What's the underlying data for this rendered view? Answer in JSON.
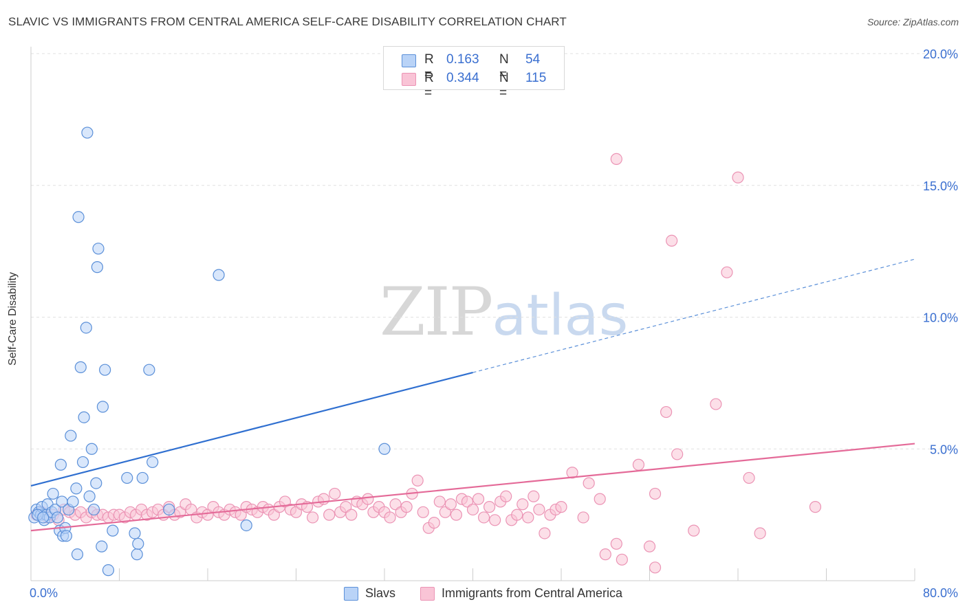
{
  "title": "SLAVIC VS IMMIGRANTS FROM CENTRAL AMERICA SELF-CARE DISABILITY CORRELATION CHART",
  "source": "Source: ZipAtlas.com",
  "watermark": {
    "zip": "ZIP",
    "atlas": "atlas"
  },
  "colors": {
    "blue": "#2f6fd0",
    "blue_fill": "#b9d3f7",
    "blue_stroke": "#5a8fd8",
    "pink": "#e46a98",
    "pink_fill": "#f9c4d6",
    "pink_stroke": "#eb93b4",
    "grid": "#e0e0e0",
    "axis_text": "#3a6fd0"
  },
  "legend_top": {
    "rows": [
      {
        "r_label": "R =",
        "r_value": "0.163",
        "n_label": "N =",
        "n_value": "54",
        "color": "#b9d3f7"
      },
      {
        "r_label": "R =",
        "r_value": "0.344",
        "n_label": "N =",
        "n_value": "115",
        "color": "#f9c4d6"
      }
    ]
  },
  "legend_bottom": {
    "items": [
      {
        "label": "Slavs",
        "color": "#b9d3f7"
      },
      {
        "label": "Immigrants from Central America",
        "color": "#f9c4d6"
      }
    ]
  },
  "chart_data": {
    "type": "scatter",
    "title": "SLAVIC VS IMMIGRANTS FROM CENTRAL AMERICA SELF-CARE DISABILITY CORRELATION CHART",
    "xlabel": "",
    "ylabel": "Self-Care Disability",
    "xlim": [
      0,
      80
    ],
    "ylim": [
      0,
      20
    ],
    "x_tick_labels": [
      "0.0%",
      "80.0%"
    ],
    "y_tick_labels": [
      "5.0%",
      "10.0%",
      "15.0%",
      "20.0%"
    ],
    "y_ticks": [
      5,
      10,
      15,
      20
    ],
    "x_ticks": [
      0,
      8,
      16,
      24,
      32,
      40,
      48,
      56,
      64,
      72,
      80
    ],
    "series": [
      {
        "name": "Slavs",
        "r": 0.163,
        "n": 54,
        "trend": {
          "x0": 0,
          "y0": 3.6,
          "x1": 40,
          "y1": 7.9,
          "dash_to_x": 80,
          "dash_to_y": 12.2
        },
        "points": [
          [
            0.3,
            2.4
          ],
          [
            0.5,
            2.7
          ],
          [
            0.7,
            2.6
          ],
          [
            0.9,
            2.5
          ],
          [
            1.0,
            2.8
          ],
          [
            1.2,
            2.3
          ],
          [
            1.4,
            2.5
          ],
          [
            1.5,
            2.9
          ],
          [
            1.7,
            2.4
          ],
          [
            1.9,
            2.6
          ],
          [
            2.0,
            3.3
          ],
          [
            2.2,
            2.7
          ],
          [
            2.4,
            2.4
          ],
          [
            2.6,
            1.9
          ],
          [
            2.7,
            4.4
          ],
          [
            2.8,
            3.0
          ],
          [
            2.9,
            1.7
          ],
          [
            3.1,
            2.0
          ],
          [
            3.2,
            1.7
          ],
          [
            3.4,
            2.7
          ],
          [
            3.6,
            5.5
          ],
          [
            3.8,
            3.0
          ],
          [
            4.1,
            3.5
          ],
          [
            4.2,
            1.0
          ],
          [
            4.3,
            13.8
          ],
          [
            4.5,
            8.1
          ],
          [
            4.7,
            4.5
          ],
          [
            4.8,
            6.2
          ],
          [
            5.0,
            9.6
          ],
          [
            5.1,
            17.0
          ],
          [
            5.3,
            3.2
          ],
          [
            5.5,
            5.0
          ],
          [
            5.7,
            2.7
          ],
          [
            5.9,
            3.7
          ],
          [
            6.0,
            11.9
          ],
          [
            6.1,
            12.6
          ],
          [
            6.4,
            1.3
          ],
          [
            6.5,
            6.6
          ],
          [
            6.7,
            8.0
          ],
          [
            7.0,
            0.4
          ],
          [
            7.4,
            1.9
          ],
          [
            8.7,
            3.9
          ],
          [
            9.4,
            1.8
          ],
          [
            9.6,
            1.0
          ],
          [
            9.7,
            1.4
          ],
          [
            10.1,
            3.9
          ],
          [
            10.7,
            8.0
          ],
          [
            11.0,
            4.5
          ],
          [
            12.5,
            2.7
          ],
          [
            17.0,
            11.6
          ],
          [
            19.5,
            2.1
          ],
          [
            32.0,
            5.0
          ],
          [
            0.6,
            2.5
          ],
          [
            1.1,
            2.4
          ]
        ]
      },
      {
        "name": "Immigrants from Central America",
        "r": 0.344,
        "n": 115,
        "trend": {
          "x0": 0,
          "y0": 1.9,
          "x1": 80,
          "y1": 5.2
        },
        "points": [
          [
            0.5,
            2.5
          ],
          [
            1.0,
            2.6
          ],
          [
            1.5,
            2.4
          ],
          [
            2.0,
            2.5
          ],
          [
            2.5,
            2.3
          ],
          [
            3.0,
            2.7
          ],
          [
            3.5,
            2.6
          ],
          [
            4.0,
            2.5
          ],
          [
            4.5,
            2.6
          ],
          [
            5.0,
            2.4
          ],
          [
            5.5,
            2.6
          ],
          [
            6.0,
            2.5
          ],
          [
            6.5,
            2.5
          ],
          [
            7.0,
            2.4
          ],
          [
            7.5,
            2.5
          ],
          [
            8.0,
            2.5
          ],
          [
            8.5,
            2.4
          ],
          [
            9.0,
            2.6
          ],
          [
            9.5,
            2.5
          ],
          [
            10.0,
            2.7
          ],
          [
            10.5,
            2.5
          ],
          [
            11.0,
            2.6
          ],
          [
            11.5,
            2.7
          ],
          [
            12.0,
            2.5
          ],
          [
            12.5,
            2.8
          ],
          [
            13.0,
            2.5
          ],
          [
            13.5,
            2.6
          ],
          [
            14.0,
            2.9
          ],
          [
            14.5,
            2.7
          ],
          [
            15.0,
            2.4
          ],
          [
            15.5,
            2.6
          ],
          [
            16.0,
            2.5
          ],
          [
            16.5,
            2.8
          ],
          [
            17.0,
            2.6
          ],
          [
            17.5,
            2.5
          ],
          [
            18.0,
            2.7
          ],
          [
            18.5,
            2.6
          ],
          [
            19.0,
            2.5
          ],
          [
            19.5,
            2.8
          ],
          [
            20.0,
            2.7
          ],
          [
            20.5,
            2.6
          ],
          [
            21.0,
            2.8
          ],
          [
            21.5,
            2.7
          ],
          [
            22.0,
            2.5
          ],
          [
            22.5,
            2.8
          ],
          [
            23.0,
            3.0
          ],
          [
            23.5,
            2.7
          ],
          [
            24.0,
            2.6
          ],
          [
            24.5,
            2.9
          ],
          [
            25.0,
            2.8
          ],
          [
            25.5,
            2.4
          ],
          [
            26.0,
            3.0
          ],
          [
            26.5,
            3.1
          ],
          [
            27.0,
            2.5
          ],
          [
            27.5,
            3.3
          ],
          [
            28.0,
            2.6
          ],
          [
            28.5,
            2.8
          ],
          [
            29.0,
            2.5
          ],
          [
            29.5,
            3.0
          ],
          [
            30.0,
            2.9
          ],
          [
            30.5,
            3.1
          ],
          [
            31.0,
            2.6
          ],
          [
            31.5,
            2.8
          ],
          [
            32.0,
            2.6
          ],
          [
            32.5,
            2.4
          ],
          [
            33.0,
            2.9
          ],
          [
            33.5,
            2.6
          ],
          [
            34.0,
            2.8
          ],
          [
            34.5,
            3.3
          ],
          [
            35.0,
            3.8
          ],
          [
            35.5,
            2.6
          ],
          [
            36.0,
            2.0
          ],
          [
            36.5,
            2.2
          ],
          [
            37.0,
            3.0
          ],
          [
            37.5,
            2.6
          ],
          [
            38.0,
            2.9
          ],
          [
            38.5,
            2.5
          ],
          [
            39.0,
            3.1
          ],
          [
            39.5,
            3.0
          ],
          [
            40.0,
            2.7
          ],
          [
            40.5,
            3.1
          ],
          [
            41.0,
            2.4
          ],
          [
            41.5,
            2.8
          ],
          [
            42.0,
            2.3
          ],
          [
            42.5,
            3.0
          ],
          [
            43.0,
            3.2
          ],
          [
            43.5,
            2.3
          ],
          [
            44.0,
            2.5
          ],
          [
            44.5,
            2.9
          ],
          [
            45.0,
            2.4
          ],
          [
            45.5,
            3.2
          ],
          [
            46.0,
            2.7
          ],
          [
            46.5,
            1.8
          ],
          [
            47.0,
            2.5
          ],
          [
            47.5,
            2.7
          ],
          [
            48.0,
            2.8
          ],
          [
            49.0,
            4.1
          ],
          [
            50.0,
            2.4
          ],
          [
            50.5,
            3.7
          ],
          [
            51.5,
            3.1
          ],
          [
            52.0,
            1.0
          ],
          [
            53.0,
            1.4
          ],
          [
            53.5,
            0.8
          ],
          [
            55.0,
            4.4
          ],
          [
            56.5,
            0.5
          ],
          [
            56.0,
            1.3
          ],
          [
            56.5,
            3.3
          ],
          [
            57.5,
            6.4
          ],
          [
            58.5,
            4.8
          ],
          [
            58.0,
            12.9
          ],
          [
            60.0,
            1.9
          ],
          [
            62.0,
            6.7
          ],
          [
            63.0,
            11.7
          ],
          [
            65.0,
            3.9
          ],
          [
            66.0,
            1.8
          ],
          [
            71.0,
            2.8
          ],
          [
            53.0,
            16.0
          ],
          [
            64.0,
            15.3
          ]
        ]
      }
    ]
  }
}
